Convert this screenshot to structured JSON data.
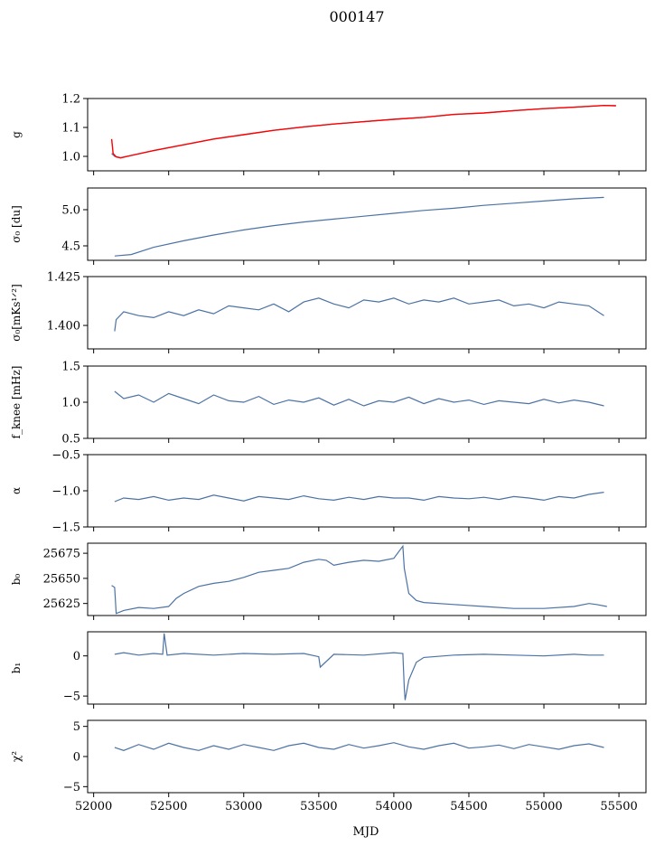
{
  "figure_title": "000147",
  "chart_data": {
    "type": "line",
    "shared_x": {
      "label": "MJD",
      "lim": [
        51960,
        55680
      ],
      "ticks": [
        52000,
        52500,
        53000,
        53500,
        54000,
        54500,
        55000,
        55500
      ],
      "tick_labels": [
        "52000",
        "52500",
        "53000",
        "53500",
        "54000",
        "54500",
        "55000",
        "55500"
      ]
    },
    "series_color": "#4c72a4",
    "overlay_color": "#ff0000",
    "panels": [
      {
        "id": "g",
        "ylabel": "g",
        "ylim": [
          0.95,
          1.2
        ],
        "yticks": [
          1.0,
          1.1,
          1.2
        ],
        "ytick_labels": [
          "1.0",
          "1.1",
          "1.2"
        ],
        "x": [
          52120,
          52140,
          52180,
          52250,
          52400,
          52600,
          52800,
          53000,
          53200,
          53400,
          53600,
          53800,
          54000,
          54200,
          54400,
          54600,
          54800,
          55000,
          55200,
          55400,
          55480
        ],
        "y": [
          1.01,
          1.0,
          0.995,
          1.003,
          1.02,
          1.04,
          1.06,
          1.075,
          1.09,
          1.102,
          1.112,
          1.12,
          1.128,
          1.135,
          1.145,
          1.15,
          1.158,
          1.165,
          1.17,
          1.176,
          1.175
        ],
        "overlay": {
          "x": [
            52120,
            52130,
            52150,
            52180,
            52250,
            52400,
            52600,
            52800,
            53000,
            53200,
            53400,
            53600,
            53800,
            54000,
            54200,
            54400,
            54600,
            54800,
            55000,
            55200,
            55400,
            55480
          ],
          "y": [
            1.06,
            1.01,
            0.998,
            0.995,
            1.003,
            1.02,
            1.04,
            1.06,
            1.075,
            1.09,
            1.102,
            1.112,
            1.12,
            1.128,
            1.135,
            1.145,
            1.15,
            1.158,
            1.165,
            1.17,
            1.176,
            1.175
          ]
        }
      },
      {
        "id": "sigma0-du",
        "ylabel": "σ₀ [du]",
        "ylim": [
          4.3,
          5.3
        ],
        "yticks": [
          4.5,
          5.0
        ],
        "ytick_labels": [
          "4.5",
          "5.0"
        ],
        "x": [
          52140,
          52250,
          52400,
          52600,
          52800,
          53000,
          53200,
          53400,
          53600,
          53800,
          54000,
          54200,
          54400,
          54600,
          54800,
          55000,
          55200,
          55400
        ],
        "y": [
          4.36,
          4.38,
          4.48,
          4.57,
          4.65,
          4.72,
          4.78,
          4.83,
          4.87,
          4.91,
          4.95,
          4.99,
          5.02,
          5.06,
          5.09,
          5.12,
          5.15,
          5.17
        ]
      },
      {
        "id": "sigma0-mks",
        "ylabel": "σ₀[mKs¹ᐟ²]",
        "ylim": [
          1.388,
          1.425
        ],
        "yticks": [
          1.4,
          1.425
        ],
        "ytick_labels": [
          "1.400",
          "1.425"
        ],
        "x": [
          52140,
          52150,
          52200,
          52300,
          52400,
          52500,
          52600,
          52700,
          52800,
          52900,
          53000,
          53100,
          53200,
          53300,
          53400,
          53500,
          53600,
          53700,
          53800,
          53900,
          54000,
          54100,
          54200,
          54300,
          54400,
          54500,
          54600,
          54700,
          54800,
          54900,
          55000,
          55100,
          55200,
          55300,
          55400
        ],
        "y": [
          1.397,
          1.403,
          1.407,
          1.405,
          1.404,
          1.407,
          1.405,
          1.408,
          1.406,
          1.41,
          1.409,
          1.408,
          1.411,
          1.407,
          1.412,
          1.414,
          1.411,
          1.409,
          1.413,
          1.412,
          1.414,
          1.411,
          1.413,
          1.412,
          1.414,
          1.411,
          1.412,
          1.413,
          1.41,
          1.411,
          1.409,
          1.412,
          1.411,
          1.41,
          1.405
        ]
      },
      {
        "id": "f-knee",
        "ylabel": "f_knee [mHz]",
        "ylim": [
          0.5,
          1.5
        ],
        "yticks": [
          0.5,
          1.0,
          1.5
        ],
        "ytick_labels": [
          "0.5",
          "1.0",
          "1.5"
        ],
        "x": [
          52140,
          52200,
          52300,
          52400,
          52500,
          52600,
          52700,
          52800,
          52900,
          53000,
          53100,
          53200,
          53300,
          53400,
          53500,
          53600,
          53700,
          53800,
          53900,
          54000,
          54100,
          54200,
          54300,
          54400,
          54500,
          54600,
          54700,
          54800,
          54900,
          55000,
          55100,
          55200,
          55300,
          55400
        ],
        "y": [
          1.15,
          1.05,
          1.1,
          1.0,
          1.12,
          1.05,
          0.98,
          1.1,
          1.02,
          1.0,
          1.08,
          0.97,
          1.03,
          1.0,
          1.06,
          0.96,
          1.04,
          0.95,
          1.02,
          1.0,
          1.07,
          0.98,
          1.05,
          1.0,
          1.03,
          0.97,
          1.02,
          1.0,
          0.98,
          1.04,
          0.99,
          1.03,
          1.0,
          0.95
        ]
      },
      {
        "id": "alpha",
        "ylabel": "α",
        "ylim": [
          -1.5,
          -0.5
        ],
        "yticks": [
          -1.5,
          -1.0,
          -0.5
        ],
        "ytick_labels": [
          "−1.5",
          "−1.0",
          "−0.5"
        ],
        "x": [
          52140,
          52200,
          52300,
          52400,
          52500,
          52600,
          52700,
          52800,
          52900,
          53000,
          53100,
          53200,
          53300,
          53400,
          53500,
          53600,
          53700,
          53800,
          53900,
          54000,
          54100,
          54200,
          54300,
          54400,
          54500,
          54600,
          54700,
          54800,
          54900,
          55000,
          55100,
          55200,
          55300,
          55400
        ],
        "y": [
          -1.15,
          -1.1,
          -1.12,
          -1.08,
          -1.13,
          -1.1,
          -1.12,
          -1.06,
          -1.1,
          -1.14,
          -1.08,
          -1.1,
          -1.12,
          -1.07,
          -1.11,
          -1.13,
          -1.09,
          -1.12,
          -1.08,
          -1.1,
          -1.1,
          -1.13,
          -1.08,
          -1.1,
          -1.11,
          -1.09,
          -1.12,
          -1.08,
          -1.1,
          -1.13,
          -1.08,
          -1.1,
          -1.05,
          -1.02
        ]
      },
      {
        "id": "b0",
        "ylabel": "b₀",
        "ylim": [
          25613,
          25685
        ],
        "yticks": [
          25625,
          25650,
          25675
        ],
        "ytick_labels": [
          "25625",
          "25650",
          "25675"
        ],
        "x": [
          52120,
          52140,
          52150,
          52200,
          52300,
          52400,
          52500,
          52550,
          52600,
          52700,
          52800,
          52900,
          53000,
          53100,
          53200,
          53300,
          53400,
          53500,
          53550,
          53600,
          53700,
          53800,
          53900,
          54000,
          54060,
          54070,
          54100,
          54150,
          54200,
          54400,
          54600,
          54800,
          55000,
          55200,
          55300,
          55350,
          55420
        ],
        "y": [
          25643,
          25641,
          25615,
          25618,
          25621,
          25620,
          25622,
          25630,
          25635,
          25642,
          25645,
          25647,
          25651,
          25656,
          25658,
          25660,
          25666,
          25669,
          25668,
          25663,
          25666,
          25668,
          25667,
          25670,
          25682,
          25660,
          25635,
          25628,
          25626,
          25624,
          25622,
          25620,
          25620,
          25622,
          25625,
          25624,
          25622
        ]
      },
      {
        "id": "b1",
        "ylabel": "b₁",
        "ylim": [
          -6,
          3
        ],
        "yticks": [
          -5,
          0
        ],
        "ytick_labels": [
          "−5",
          "0"
        ],
        "x": [
          52140,
          52200,
          52300,
          52400,
          52460,
          52470,
          52490,
          52600,
          52800,
          53000,
          53200,
          53400,
          53500,
          53510,
          53600,
          53800,
          54000,
          54060,
          54070,
          54075,
          54100,
          54150,
          54200,
          54400,
          54600,
          54800,
          55000,
          55200,
          55300,
          55400
        ],
        "y": [
          0.2,
          0.4,
          0.1,
          0.3,
          0.2,
          2.8,
          0.1,
          0.3,
          0.1,
          0.3,
          0.2,
          0.3,
          -0.1,
          -1.4,
          0.2,
          0.1,
          0.4,
          0.3,
          -4.0,
          -5.5,
          -3.0,
          -0.8,
          -0.2,
          0.1,
          0.2,
          0.1,
          0.0,
          0.2,
          0.1,
          0.1
        ]
      },
      {
        "id": "chi2",
        "ylabel": "χ²",
        "ylim": [
          -6,
          6
        ],
        "yticks": [
          -5,
          0,
          5
        ],
        "ytick_labels": [
          "−5",
          "0",
          "5"
        ],
        "x": [
          52140,
          52200,
          52300,
          52400,
          52500,
          52600,
          52700,
          52800,
          52900,
          53000,
          53100,
          53200,
          53300,
          53400,
          53500,
          53600,
          53700,
          53800,
          53900,
          54000,
          54100,
          54200,
          54300,
          54400,
          54500,
          54600,
          54700,
          54800,
          54900,
          55000,
          55100,
          55200,
          55300,
          55400
        ],
        "y": [
          1.5,
          1.0,
          2.0,
          1.2,
          2.2,
          1.5,
          1.0,
          1.8,
          1.2,
          2.0,
          1.5,
          1.0,
          1.8,
          2.2,
          1.5,
          1.2,
          2.0,
          1.4,
          1.8,
          2.3,
          1.6,
          1.2,
          1.8,
          2.2,
          1.4,
          1.6,
          1.9,
          1.3,
          2.0,
          1.6,
          1.2,
          1.8,
          2.1,
          1.5
        ]
      }
    ],
    "grid": false,
    "legend": "none"
  }
}
